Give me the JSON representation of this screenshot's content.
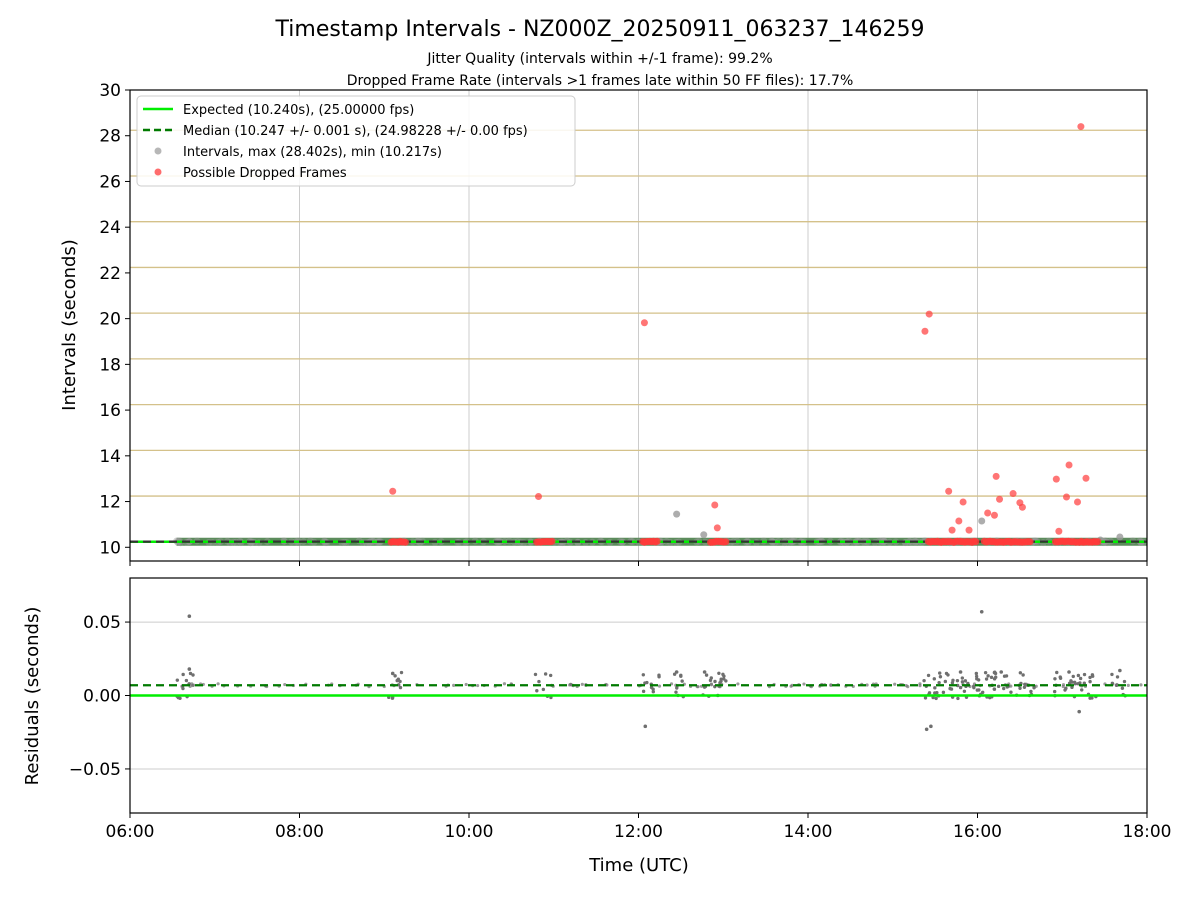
{
  "chart_data": {
    "type": "scatter",
    "title": "Timestamp Intervals - NZ000Z_20250911_063237_146259",
    "subtitle_lines": [
      "Jitter Quality (intervals within +/-1 frame): 99.2%",
      "Dropped Frame Rate (intervals >1 frames late within 50 FF files): 17.7%"
    ],
    "colors": {
      "expected": "#00ee00",
      "median": "#007a00",
      "intervals": "#999999",
      "dropped": "#ff3b3b",
      "residual_points": "#6f6f6f",
      "threshold_lines": "#d4c18a",
      "grid": "#cccccc"
    },
    "x_axis": {
      "label": "Time (UTC)",
      "range_hours": [
        6,
        18
      ],
      "tick_hours": [
        6,
        8,
        10,
        12,
        14,
        16,
        18
      ],
      "tick_labels": [
        "06:00",
        "08:00",
        "10:00",
        "12:00",
        "14:00",
        "16:00",
        "18:00"
      ]
    },
    "intervals_panel": {
      "ylabel": "Intervals (seconds)",
      "ylim": [
        9.4,
        30
      ],
      "yticks": [
        10,
        12,
        14,
        16,
        18,
        20,
        22,
        24,
        26,
        28,
        30
      ],
      "grid_vertical": true,
      "threshold_lines": [
        12.24,
        14.24,
        16.24,
        18.24,
        20.24,
        22.24,
        24.24,
        26.24,
        28.24
      ],
      "expected": 10.24,
      "median": 10.247,
      "data_span_hours": [
        6.55,
        18.0
      ],
      "legend_position": "top-left",
      "legend": [
        {
          "kind": "line",
          "label": "Expected (10.240s), (25.00000 fps)"
        },
        {
          "kind": "dashed",
          "label": "Median (10.247 +/- 0.001 s), (24.98228 +/- 0.00 fps)"
        },
        {
          "kind": "gray-dot",
          "label": "Intervals, max (28.402s), min (10.217s)"
        },
        {
          "kind": "red-dot",
          "label": "Possible Dropped Frames"
        }
      ],
      "interval_points": [
        [
          6.7,
          10.25
        ],
        [
          12.45,
          11.45
        ],
        [
          12.77,
          10.55
        ],
        [
          16.05,
          11.15
        ],
        [
          17.45,
          10.32
        ],
        [
          17.68,
          10.45
        ]
      ],
      "dropped_clusters": [
        [
          9.08,
          9.25
        ],
        [
          10.8,
          10.98
        ],
        [
          12.05,
          12.22
        ],
        [
          12.85,
          13.03
        ],
        [
          15.42,
          15.68
        ],
        [
          15.72,
          15.98
        ],
        [
          16.08,
          16.62
        ],
        [
          16.92,
          17.42
        ]
      ],
      "dropped_frames": [
        [
          9.1,
          12.45
        ],
        [
          10.82,
          12.22
        ],
        [
          12.07,
          19.82
        ],
        [
          12.9,
          11.85
        ],
        [
          12.93,
          10.85
        ],
        [
          15.38,
          19.45
        ],
        [
          15.43,
          20.2
        ],
        [
          15.66,
          12.45
        ],
        [
          15.7,
          10.75
        ],
        [
          15.78,
          11.15
        ],
        [
          15.83,
          11.98
        ],
        [
          15.9,
          10.75
        ],
        [
          16.12,
          11.5
        ],
        [
          16.2,
          11.4
        ],
        [
          16.22,
          13.1
        ],
        [
          16.26,
          12.1
        ],
        [
          16.42,
          12.35
        ],
        [
          16.5,
          11.95
        ],
        [
          16.53,
          11.75
        ],
        [
          16.93,
          12.98
        ],
        [
          16.96,
          10.7
        ],
        [
          17.05,
          12.2
        ],
        [
          17.08,
          13.6
        ],
        [
          17.18,
          11.98
        ],
        [
          17.22,
          28.4
        ],
        [
          17.28,
          13.02
        ]
      ]
    },
    "residuals_panel": {
      "ylabel": "Residuals (seconds)",
      "ylim": [
        -0.08,
        0.08
      ],
      "yticks": [
        -0.05,
        0.0,
        0.05
      ],
      "ytick_labels": [
        "−0.05",
        "0.00",
        "0.05"
      ],
      "grid_horizontal": true,
      "zero_line": 0.0,
      "median_offset": 0.007,
      "outliers": [
        [
          6.7,
          0.054
        ],
        [
          6.7,
          0.018
        ],
        [
          12.08,
          -0.021
        ],
        [
          15.4,
          -0.023
        ],
        [
          15.45,
          -0.021
        ],
        [
          16.05,
          0.057
        ],
        [
          17.2,
          -0.011
        ],
        [
          9.1,
          0.015
        ],
        [
          12.45,
          0.016
        ],
        [
          12.78,
          0.016
        ],
        [
          15.8,
          0.016
        ],
        [
          16.28,
          0.016
        ],
        [
          17.08,
          0.016
        ],
        [
          17.68,
          0.017
        ]
      ],
      "clusters": [
        [
          6.55,
          6.75,
          12
        ],
        [
          9.05,
          9.28,
          10
        ],
        [
          10.78,
          11.0,
          8
        ],
        [
          12.05,
          12.25,
          10
        ],
        [
          12.42,
          12.55,
          8
        ],
        [
          12.75,
          13.05,
          18
        ],
        [
          15.35,
          15.55,
          14
        ],
        [
          15.55,
          15.85,
          18
        ],
        [
          15.85,
          16.05,
          14
        ],
        [
          16.05,
          16.35,
          20
        ],
        [
          16.35,
          16.7,
          18
        ],
        [
          16.85,
          17.15,
          16
        ],
        [
          17.15,
          17.45,
          16
        ],
        [
          17.55,
          17.75,
          8
        ]
      ]
    }
  }
}
